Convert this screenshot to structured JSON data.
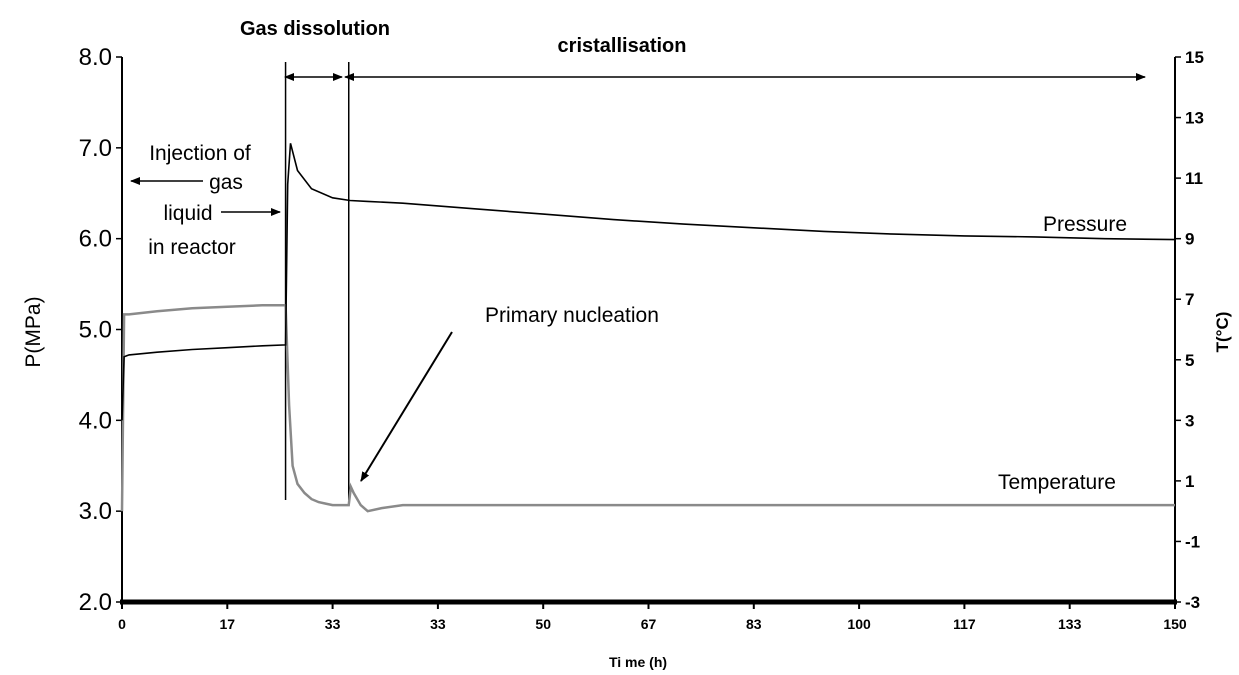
{
  "chart_data": {
    "type": "line",
    "xlabel": "Ti me (h)",
    "ylabel_left": "P(MPa)",
    "ylabel_right": "T(°C)",
    "xlim": [
      0,
      150
    ],
    "ylim_left": [
      2.0,
      8.0
    ],
    "ylim_right": [
      -3,
      15
    ],
    "x_ticks": [
      "0",
      "17",
      "33",
      "33",
      "50",
      "67",
      "83",
      "100",
      "117",
      "133",
      "150"
    ],
    "y_left_ticks": [
      "2.0",
      "3.0",
      "4.0",
      "5.0",
      "6.0",
      "7.0",
      "8.0"
    ],
    "y_right_ticks": [
      "-3",
      "-1",
      "1",
      "3",
      "5",
      "7",
      "9",
      "11",
      "13",
      "15"
    ],
    "grid": false,
    "series": [
      {
        "name": "Pressure",
        "axis": "left",
        "color": "#000000",
        "x": [
          0,
          0.3,
          1,
          5,
          10,
          15,
          20,
          23.3,
          23.6,
          24.0,
          25,
          27,
          30,
          32.5,
          35,
          40,
          50,
          60,
          70,
          80,
          90,
          100,
          110,
          120,
          130,
          140,
          150
        ],
        "y": [
          4.0,
          4.7,
          4.72,
          4.75,
          4.78,
          4.8,
          4.82,
          4.83,
          6.6,
          7.05,
          6.75,
          6.55,
          6.45,
          6.42,
          6.41,
          6.39,
          6.33,
          6.27,
          6.21,
          6.16,
          6.12,
          6.08,
          6.05,
          6.03,
          6.02,
          6.0,
          5.99
        ]
      },
      {
        "name": "Temperature",
        "axis": "right",
        "color": "#8a8a8a",
        "x": [
          0,
          0.3,
          1,
          5,
          10,
          15,
          20,
          23.3,
          23.8,
          24.3,
          25,
          26,
          27,
          28,
          29,
          30,
          31,
          32.3,
          32.6,
          33.0,
          34,
          35,
          37,
          40,
          50,
          60,
          80,
          100,
          120,
          140,
          150
        ],
        "y": [
          0.0,
          6.5,
          6.5,
          6.6,
          6.7,
          6.75,
          6.8,
          6.8,
          3.5,
          1.5,
          0.9,
          0.6,
          0.4,
          0.3,
          0.25,
          0.2,
          0.2,
          0.2,
          0.8,
          0.6,
          0.2,
          0.0,
          0.1,
          0.2,
          0.2,
          0.2,
          0.2,
          0.2,
          0.2,
          0.2,
          0.2
        ]
      }
    ],
    "markers": [
      23.3,
      32.3
    ],
    "annotations": {
      "gas_dissolution": "Gas dissolution",
      "cristallisation": "cristallisation",
      "injection_line1": "Injection of",
      "injection_line2": "gas",
      "injection_line3": "liquid",
      "injection_line4": "in reactor",
      "primary_nucleation": "Primary nucleation",
      "pressure_label": "Pressure",
      "temperature_label": "Temperature"
    }
  }
}
